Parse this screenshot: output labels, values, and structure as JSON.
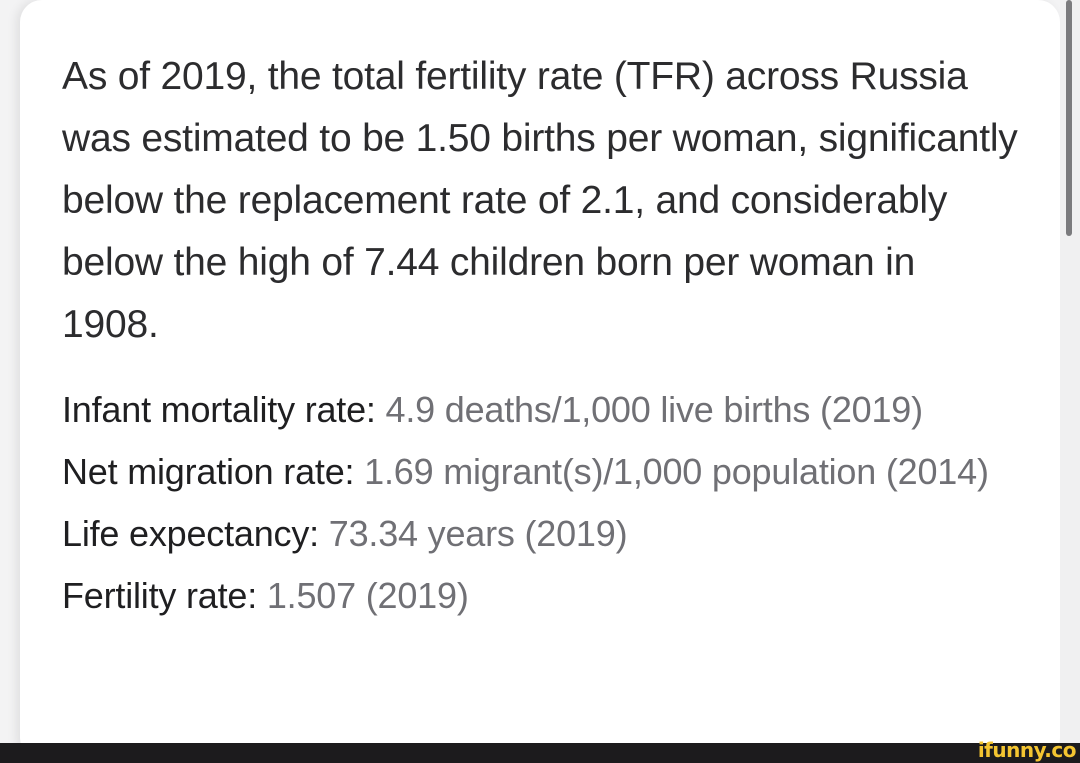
{
  "summary": {
    "text": "As of 2019, the total fertility rate (TFR) across Russia was estimated to be 1.50 births per woman, significantly below the replacement rate of 2.1, and considerably below the high of 7.44 children born per woman in 1908."
  },
  "facts": [
    {
      "label": "Infant mortality rate:",
      "value": "4.9 deaths/1,000 live births (2019)"
    },
    {
      "label": "Net migration rate:",
      "value": "1.69 migrant(s)/1,000 population (2014)"
    },
    {
      "label": "Life expectancy:",
      "value": "73.34 years (2019)"
    },
    {
      "label": "Fertility rate:",
      "value": "1.507 (2019)"
    }
  ],
  "watermark": {
    "text": "ifunny.co",
    "color": "#f4c531"
  },
  "colors": {
    "label": "#1f1f21",
    "value": "#707075",
    "background": "#ffffff"
  }
}
